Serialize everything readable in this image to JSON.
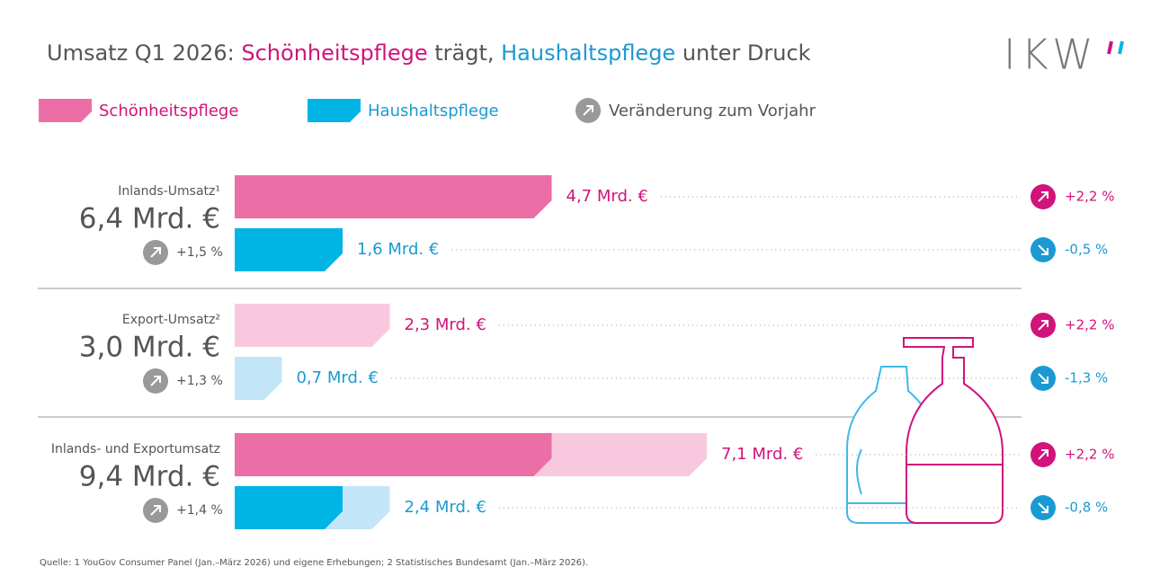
{
  "title": {
    "prefix": "Umsatz Q1 2026: ",
    "beauty": "Schönheitspflege",
    "mid": " trägt, ",
    "household": "Haushaltspflege",
    "suffix": " unter Druck"
  },
  "logo": "IKW",
  "legend": {
    "beauty": "Schönheitspflege",
    "household": "Haushaltspflege",
    "change": "Veränderung zum Vorjahr"
  },
  "colors": {
    "beauty": "#ec6ea6",
    "beauty_light": "#f8c9de",
    "household": "#00b4e6",
    "household_light": "#c2e6f8",
    "beauty_text": "#d1137b",
    "household_text": "#1a9ad2"
  },
  "groups": [
    {
      "label": "Inlands-Umsatz¹",
      "total": "6,4 Mrd. €",
      "change": {
        "value": 1.5,
        "label": "+1,5 %"
      },
      "bars": [
        {
          "value": 4.7,
          "label": "4,7 Mrd. €",
          "change": {
            "value": 2.2,
            "label": "+2,2 %"
          }
        },
        {
          "value": 1.6,
          "label": "1,6 Mrd. €",
          "change": {
            "value": -0.5,
            "label": "-0,5 %"
          }
        }
      ]
    },
    {
      "label": "Export-Umsatz²",
      "total": "3,0 Mrd. €",
      "change": {
        "value": 1.3,
        "label": "+1,3 %"
      },
      "bars": [
        {
          "value": 2.3,
          "label": "2,3 Mrd. €",
          "change": {
            "value": 2.2,
            "label": "+2,2 %"
          }
        },
        {
          "value": 0.7,
          "label": "0,7 Mrd. €",
          "change": {
            "value": -1.3,
            "label": "-1,3 %"
          }
        }
      ]
    },
    {
      "label": "Inlands- und Exportumsatz",
      "total": "9,4 Mrd. €",
      "change": {
        "value": 1.4,
        "label": "+1,4 %"
      },
      "bars": [
        {
          "value": 7.1,
          "label": "7,1 Mrd. €",
          "change": {
            "value": 2.2,
            "label": "+2,2 %"
          }
        },
        {
          "value": 2.4,
          "label": "2,4 Mrd. €",
          "change": {
            "value": -0.8,
            "label": "-0,8 %"
          }
        }
      ]
    }
  ],
  "source": "Quelle: 1 YouGov Consumer Panel (Jan.–März 2026) und eigene Erhebungen; 2 Statistisches Bundesamt (Jan.–März 2026)."
}
